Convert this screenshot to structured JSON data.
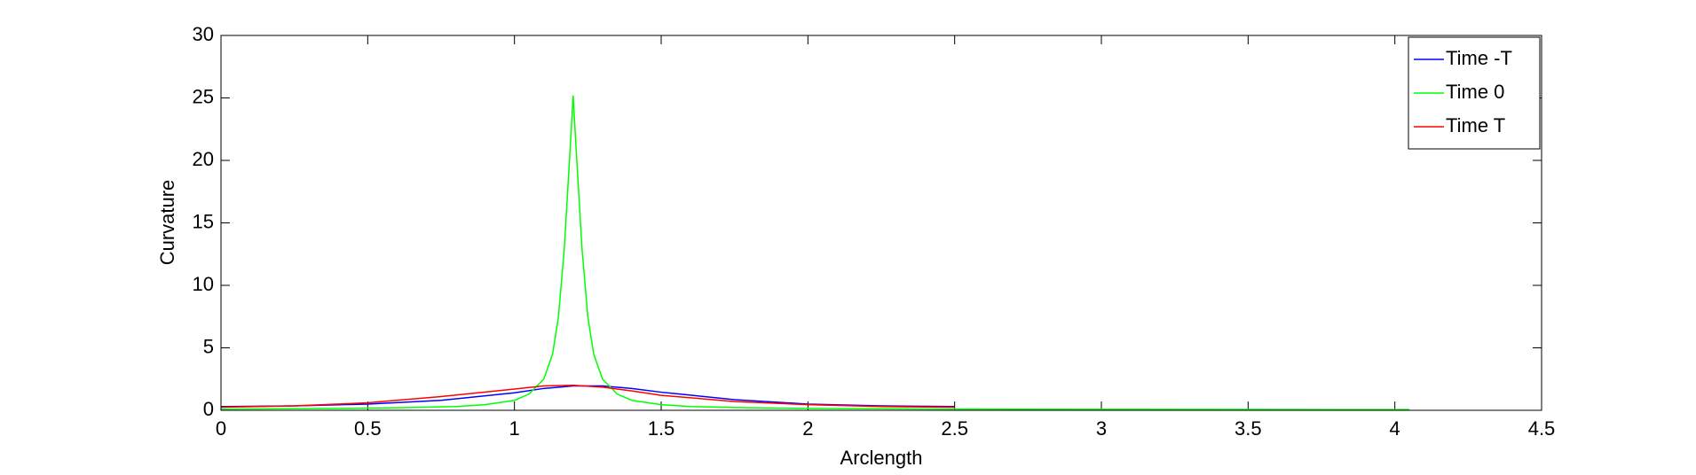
{
  "chart_data": {
    "type": "line",
    "xlabel": "Arclength",
    "ylabel": "Curvature",
    "xlim": [
      0,
      4.5
    ],
    "xticks": [
      0,
      0.5,
      1,
      1.5,
      2,
      2.5,
      3,
      3.5,
      4,
      4.5
    ],
    "ylim": [
      0,
      30
    ],
    "yticks": [
      0,
      5,
      10,
      15,
      20,
      25,
      30
    ],
    "legend": "northeast",
    "grid": false,
    "series": [
      {
        "name": "Time -T",
        "color": "#0000ff",
        "x": [
          0,
          0.25,
          0.5,
          0.75,
          1.0,
          1.1,
          1.2,
          1.3,
          1.4,
          1.5,
          1.75,
          2.0,
          2.25,
          2.5
        ],
        "values": [
          0.3,
          0.35,
          0.5,
          0.8,
          1.4,
          1.75,
          1.95,
          1.95,
          1.75,
          1.45,
          0.85,
          0.5,
          0.35,
          0.3
        ]
      },
      {
        "name": "Time 0",
        "color": "#00ff00",
        "x": [
          0,
          0.2,
          0.4,
          0.6,
          0.8,
          0.9,
          1.0,
          1.05,
          1.1,
          1.13,
          1.15,
          1.17,
          1.19,
          1.2,
          1.21,
          1.23,
          1.25,
          1.27,
          1.3,
          1.35,
          1.4,
          1.5,
          1.6,
          1.8,
          2.0,
          2.5,
          3,
          3.5,
          4.05
        ],
        "values": [
          0.1,
          0.12,
          0.15,
          0.2,
          0.3,
          0.45,
          0.8,
          1.3,
          2.5,
          4.5,
          7.5,
          13,
          21,
          25.2,
          21,
          13,
          7.5,
          4.5,
          2.5,
          1.3,
          0.8,
          0.45,
          0.3,
          0.2,
          0.15,
          0.1,
          0.08,
          0.07,
          0.06
        ]
      },
      {
        "name": "Time T",
        "color": "#ff0000",
        "x": [
          0,
          0.25,
          0.5,
          0.75,
          1.0,
          1.1,
          1.2,
          1.3,
          1.4,
          1.5,
          1.75,
          2.0,
          2.25,
          2.5
        ],
        "values": [
          0.25,
          0.35,
          0.6,
          1.1,
          1.7,
          1.95,
          2.0,
          1.85,
          1.55,
          1.2,
          0.7,
          0.45,
          0.3,
          0.25
        ]
      }
    ]
  }
}
